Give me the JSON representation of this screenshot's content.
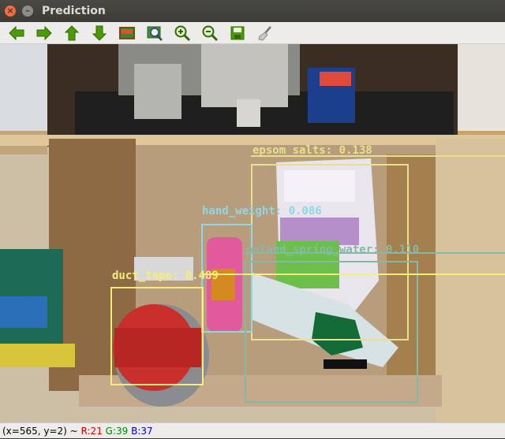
{
  "window": {
    "title": "Prediction",
    "close_glyph": "×",
    "min_glyph": "–"
  },
  "toolbar": {
    "buttons": [
      {
        "name": "pan-left",
        "icon": "arrow-left-icon"
      },
      {
        "name": "pan-right",
        "icon": "arrow-right-icon"
      },
      {
        "name": "pan-up",
        "icon": "arrow-up-icon"
      },
      {
        "name": "pan-down",
        "icon": "arrow-down-icon"
      },
      {
        "name": "fit-image",
        "icon": "image-icon"
      },
      {
        "name": "zoom-region",
        "icon": "zoom-region-icon"
      },
      {
        "name": "zoom-in",
        "icon": "zoom-in-icon"
      },
      {
        "name": "zoom-out",
        "icon": "zoom-out-icon"
      },
      {
        "name": "save",
        "icon": "save-icon"
      },
      {
        "name": "properties",
        "icon": "brush-icon"
      }
    ]
  },
  "detections": [
    {
      "label": "epsom_salts: 0.138",
      "color": "#e8e08c"
    },
    {
      "label": "hand_weight: 0.086",
      "color": "#8fd6e6"
    },
    {
      "label": "poland_spring_water: 0.110",
      "color": "#86b8a8"
    },
    {
      "label": "duct_tape: 0.489",
      "color": "#f4ee7c"
    }
  ],
  "status": {
    "coords": "(x=565, y=2) ~",
    "r": "R:21",
    "g": "G:39",
    "b": "B:37"
  }
}
